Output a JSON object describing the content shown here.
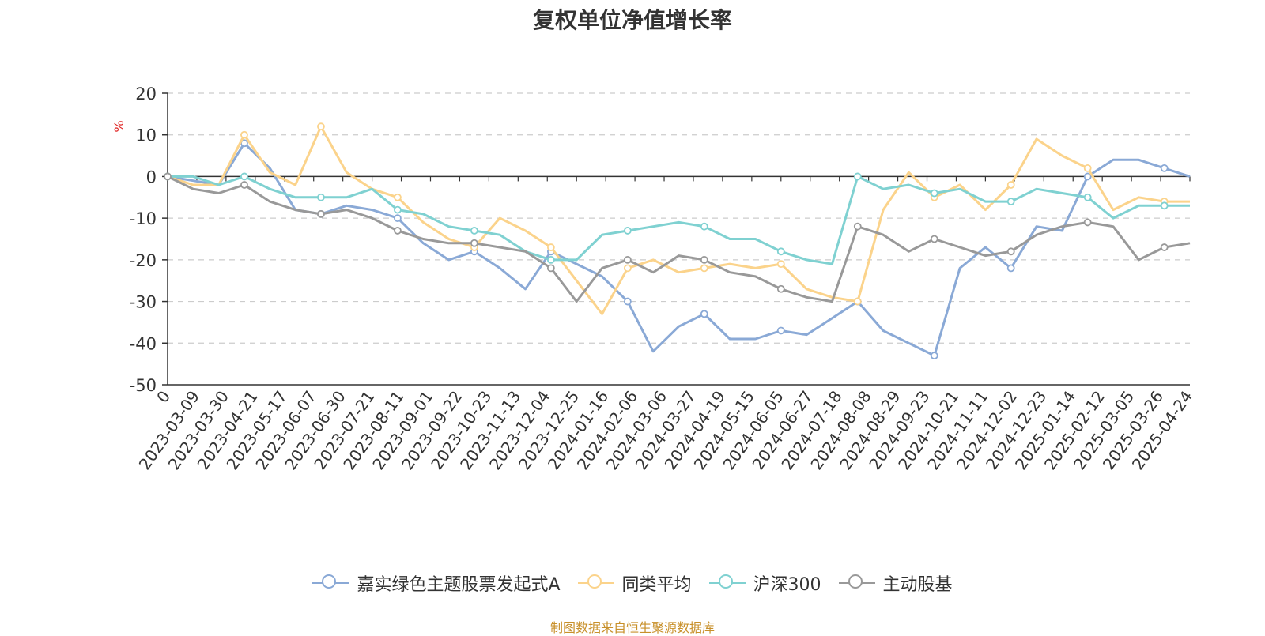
{
  "chart_data": {
    "type": "line",
    "title": "复权单位净值增长率",
    "ylabel": "%",
    "ylim": [
      -50,
      20
    ],
    "y_ticks": [
      "20",
      "10",
      "0",
      "-10",
      "-20",
      "-30",
      "-40",
      "-50"
    ],
    "grid": "horizontal dashed",
    "legend_position": "bottom",
    "x_tick_labels": [
      "0",
      "2023-03-09",
      "2023-03-30",
      "2023-04-21",
      "2023-05-17",
      "2023-06-07",
      "2023-06-30",
      "2023-07-21",
      "2023-08-11",
      "2023-09-01",
      "2023-09-22",
      "2023-10-23",
      "2023-11-13",
      "2023-12-04",
      "2023-12-25",
      "2024-01-16",
      "2024-02-06",
      "2024-03-06",
      "2024-03-27",
      "2024-04-19",
      "2024-05-15",
      "2024-06-05",
      "2024-06-27",
      "2024-07-18",
      "2024-08-08",
      "2024-08-29",
      "2024-09-23",
      "2024-10-21",
      "2024-11-11",
      "2024-12-02",
      "2024-12-23",
      "2025-01-14",
      "2025-02-12",
      "2025-03-05",
      "2025-03-26",
      "2025-04-24"
    ],
    "series": [
      {
        "name": "嘉实绿色主题股票发起式A",
        "color": "#8aa9d6",
        "values": [
          0,
          -1,
          -2,
          8,
          2,
          -8,
          -9,
          -7,
          -8,
          -10,
          -16,
          -20,
          -18,
          -22,
          -27,
          -18,
          -21,
          -24,
          -30,
          -42,
          -36,
          -33,
          -39,
          -39,
          -37,
          -38,
          -34,
          -30,
          -37,
          -40,
          -43,
          -22,
          -17,
          -22,
          -12,
          -13,
          0,
          4,
          4,
          2,
          0
        ]
      },
      {
        "name": "同类平均",
        "color": "#fbd38b",
        "values": [
          0,
          -2,
          -2,
          10,
          1,
          -2,
          12,
          1,
          -3,
          -5,
          -11,
          -15,
          -17,
          -10,
          -13,
          -17,
          -25,
          -33,
          -22,
          -20,
          -23,
          -22,
          -21,
          -22,
          -21,
          -27,
          -29,
          -30,
          -8,
          1,
          -5,
          -2,
          -8,
          -2,
          9,
          5,
          2,
          -8,
          -5,
          -6,
          -6
        ]
      },
      {
        "name": "沪深300",
        "color": "#7fd1d1",
        "values": [
          0,
          0,
          -2,
          0,
          -3,
          -5,
          -5,
          -5,
          -3,
          -8,
          -9,
          -12,
          -13,
          -14,
          -18,
          -20,
          -20,
          -14,
          -13,
          -12,
          -11,
          -12,
          -15,
          -15,
          -18,
          -20,
          -21,
          0,
          -3,
          -2,
          -4,
          -3,
          -6,
          -6,
          -3,
          -4,
          -5,
          -10,
          -7,
          -7,
          -7
        ]
      },
      {
        "name": "主动股基",
        "color": "#999999",
        "values": [
          0,
          -3,
          -4,
          -2,
          -6,
          -8,
          -9,
          -8,
          -10,
          -13,
          -15,
          -16,
          -16,
          -17,
          -18,
          -22,
          -30,
          -22,
          -20,
          -23,
          -19,
          -20,
          -23,
          -24,
          -27,
          -29,
          -30,
          -12,
          -14,
          -18,
          -15,
          -17,
          -19,
          -18,
          -14,
          -12,
          -11,
          -12,
          -20,
          -17,
          -16
        ]
      }
    ]
  },
  "legend": {
    "items": [
      "嘉实绿色主题股票发起式A",
      "同类平均",
      "沪深300",
      "主动股基"
    ]
  },
  "source": "制图数据来自恒生聚源数据库"
}
